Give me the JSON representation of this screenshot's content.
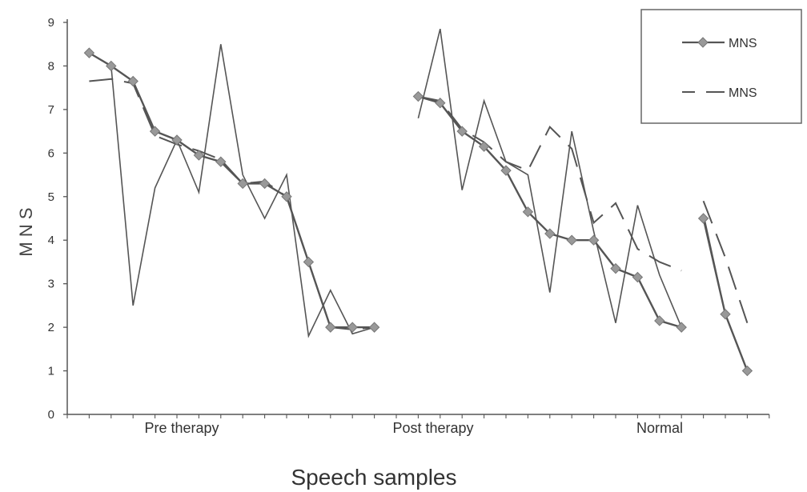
{
  "chart_data": {
    "type": "line",
    "title": "",
    "xlabel": "Speech samples",
    "ylabel": "M N S",
    "ylim": [
      0,
      9
    ],
    "yticks": [
      0,
      1,
      2,
      3,
      4,
      5,
      6,
      7,
      8,
      9
    ],
    "grid": false,
    "legend_position": "top-right",
    "category_labels": [
      "Pre therapy",
      "Post  therapy",
      "Normal"
    ],
    "series": [
      {
        "name": "MNS",
        "style": "markers",
        "color": "#555555",
        "marker_color": "#999999",
        "segments": [
          {
            "x": [
              1,
              2,
              3,
              4,
              5,
              6,
              7,
              8,
              9,
              10,
              11,
              12,
              13,
              14
            ],
            "y": [
              8.3,
              8.0,
              7.65,
              6.5,
              6.3,
              5.95,
              5.8,
              5.3,
              5.3,
              5.0,
              3.5,
              2.0,
              2.0,
              2.0
            ]
          },
          {
            "x": [
              16,
              17,
              18,
              19,
              20,
              21,
              22,
              23,
              24,
              25,
              26,
              27,
              28
            ],
            "y": [
              7.3,
              7.15,
              6.5,
              6.15,
              5.6,
              4.65,
              4.15,
              4.0,
              4.0,
              3.35,
              3.15,
              2.15,
              2.0
            ]
          },
          {
            "x": [
              29,
              30,
              31
            ],
            "y": [
              4.5,
              2.3,
              1.0
            ]
          }
        ]
      },
      {
        "name": "MNS",
        "style": "solid-thin",
        "color": "#555555",
        "segments": [
          {
            "x": [
              1,
              2,
              3,
              4,
              5,
              6,
              7,
              8,
              9,
              10,
              11,
              12,
              13,
              14
            ],
            "y": [
              8.3,
              8.0,
              2.5,
              5.2,
              6.3,
              5.1,
              8.5,
              5.5,
              4.5,
              5.5,
              1.8,
              2.85,
              1.85,
              2.0
            ]
          },
          {
            "x": [
              16,
              17,
              18,
              19,
              20,
              21,
              22,
              23,
              24,
              25,
              26,
              27,
              28
            ],
            "y": [
              6.8,
              8.85,
              5.15,
              7.2,
              5.8,
              5.5,
              2.8,
              6.5,
              4.2,
              2.1,
              4.8,
              3.2,
              2.0
            ]
          },
          {
            "x": [
              29,
              30,
              31
            ],
            "y": [
              4.6,
              2.3,
              1.0
            ]
          }
        ]
      },
      {
        "name": "MNS",
        "style": "dashed",
        "color": "#555555",
        "segments": [
          {
            "x": [
              1,
              2,
              3,
              4,
              5,
              6,
              7,
              8,
              9,
              10,
              11,
              12,
              13,
              14
            ],
            "y": [
              7.65,
              7.7,
              7.6,
              6.4,
              6.2,
              6.05,
              5.85,
              5.3,
              5.35,
              5.0,
              3.5,
              2.0,
              1.95,
              2.0
            ]
          },
          {
            "x": [
              16,
              17,
              18,
              19,
              20,
              21,
              22,
              23,
              24,
              25,
              26,
              27,
              28
            ],
            "y": [
              7.3,
              7.2,
              6.55,
              6.25,
              5.8,
              5.6,
              6.6,
              6.1,
              4.4,
              4.85,
              3.8,
              3.5,
              3.3
            ]
          },
          {
            "x": [
              29,
              30,
              31
            ],
            "y": [
              4.9,
              3.6,
              2.1
            ]
          }
        ]
      }
    ],
    "legend": [
      {
        "label": "MNS",
        "style": "markers"
      },
      {
        "label": "MNS",
        "style": "dashed"
      }
    ]
  }
}
